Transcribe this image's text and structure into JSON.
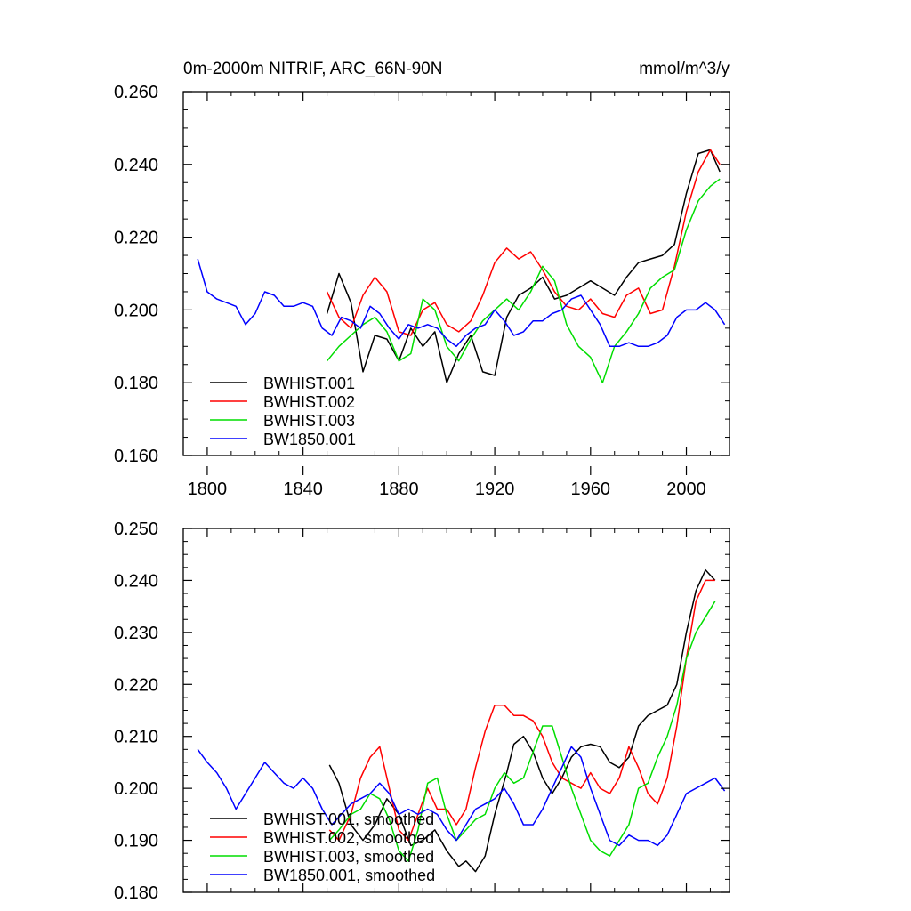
{
  "chart_data": [
    {
      "type": "line",
      "title_left": "0m-2000m NITRIF, ARC_66N-90N",
      "title_right": "mmol/m^3/y",
      "xlabel": "",
      "ylabel": "",
      "xlim": [
        1790,
        2018
      ],
      "ylim": [
        0.16,
        0.26
      ],
      "xticks": [
        1800,
        1840,
        1880,
        1920,
        1960,
        2000
      ],
      "xtick_labels": [
        "1800",
        "1840",
        "1880",
        "1920",
        "1960",
        "2000"
      ],
      "yticks": [
        0.16,
        0.18,
        0.2,
        0.22,
        0.24,
        0.26
      ],
      "ytick_labels": [
        "0.160",
        "0.180",
        "0.200",
        "0.220",
        "0.240",
        "0.260"
      ],
      "legend_position": "bottom-left",
      "series": [
        {
          "name": "BWHIST.001",
          "color": "#000000",
          "x": [
            1850,
            1855,
            1860,
            1865,
            1870,
            1875,
            1880,
            1885,
            1890,
            1895,
            1900,
            1905,
            1910,
            1915,
            1920,
            1925,
            1930,
            1935,
            1940,
            1945,
            1950,
            1955,
            1960,
            1965,
            1970,
            1975,
            1980,
            1985,
            1990,
            1995,
            2000,
            2005,
            2010,
            2014
          ],
          "values": [
            0.199,
            0.21,
            0.202,
            0.183,
            0.193,
            0.192,
            0.186,
            0.195,
            0.19,
            0.194,
            0.18,
            0.188,
            0.193,
            0.183,
            0.182,
            0.198,
            0.204,
            0.206,
            0.209,
            0.203,
            0.204,
            0.206,
            0.208,
            0.206,
            0.204,
            0.209,
            0.213,
            0.214,
            0.215,
            0.218,
            0.232,
            0.243,
            0.244,
            0.238
          ]
        },
        {
          "name": "BWHIST.002",
          "color": "#ff0000",
          "x": [
            1850,
            1855,
            1860,
            1865,
            1870,
            1875,
            1880,
            1885,
            1890,
            1895,
            1900,
            1905,
            1910,
            1915,
            1920,
            1925,
            1930,
            1935,
            1940,
            1945,
            1950,
            1955,
            1960,
            1965,
            1970,
            1975,
            1980,
            1985,
            1990,
            1995,
            2000,
            2005,
            2010,
            2014
          ],
          "values": [
            0.205,
            0.198,
            0.195,
            0.204,
            0.209,
            0.205,
            0.194,
            0.193,
            0.2,
            0.202,
            0.196,
            0.194,
            0.197,
            0.204,
            0.213,
            0.217,
            0.214,
            0.216,
            0.211,
            0.205,
            0.201,
            0.2,
            0.203,
            0.199,
            0.198,
            0.204,
            0.206,
            0.199,
            0.2,
            0.212,
            0.227,
            0.238,
            0.244,
            0.24
          ]
        },
        {
          "name": "BWHIST.003",
          "color": "#00dd00",
          "x": [
            1850,
            1855,
            1860,
            1865,
            1870,
            1875,
            1880,
            1885,
            1890,
            1895,
            1900,
            1905,
            1910,
            1915,
            1920,
            1925,
            1930,
            1935,
            1940,
            1945,
            1950,
            1955,
            1960,
            1965,
            1970,
            1975,
            1980,
            1985,
            1990,
            1995,
            2000,
            2005,
            2010,
            2014
          ],
          "values": [
            0.186,
            0.19,
            0.193,
            0.196,
            0.198,
            0.194,
            0.186,
            0.188,
            0.203,
            0.2,
            0.19,
            0.186,
            0.192,
            0.197,
            0.2,
            0.203,
            0.2,
            0.205,
            0.212,
            0.208,
            0.196,
            0.19,
            0.187,
            0.18,
            0.19,
            0.194,
            0.199,
            0.206,
            0.209,
            0.211,
            0.222,
            0.23,
            0.234,
            0.236
          ]
        },
        {
          "name": "BW1850.001",
          "color": "#0000ff",
          "x": [
            1796,
            1800,
            1804,
            1808,
            1812,
            1816,
            1820,
            1824,
            1828,
            1832,
            1836,
            1840,
            1844,
            1848,
            1852,
            1856,
            1860,
            1864,
            1868,
            1872,
            1876,
            1880,
            1884,
            1888,
            1892,
            1896,
            1900,
            1904,
            1908,
            1912,
            1916,
            1920,
            1924,
            1928,
            1932,
            1936,
            1940,
            1944,
            1948,
            1952,
            1956,
            1960,
            1964,
            1968,
            1972,
            1976,
            1980,
            1984,
            1988,
            1992,
            1996,
            2000,
            2004,
            2008,
            2012,
            2016
          ],
          "values": [
            0.214,
            0.205,
            0.203,
            0.202,
            0.201,
            0.196,
            0.199,
            0.205,
            0.204,
            0.201,
            0.201,
            0.202,
            0.201,
            0.195,
            0.193,
            0.198,
            0.197,
            0.195,
            0.201,
            0.199,
            0.195,
            0.192,
            0.196,
            0.195,
            0.196,
            0.195,
            0.192,
            0.19,
            0.193,
            0.195,
            0.196,
            0.2,
            0.197,
            0.193,
            0.194,
            0.197,
            0.197,
            0.199,
            0.2,
            0.203,
            0.204,
            0.2,
            0.196,
            0.19,
            0.19,
            0.191,
            0.19,
            0.19,
            0.191,
            0.193,
            0.198,
            0.2,
            0.2,
            0.202,
            0.2,
            0.196
          ]
        }
      ]
    },
    {
      "type": "line",
      "title_left": "",
      "title_right": "",
      "xlabel": "",
      "ylabel": "",
      "xlim": [
        1790,
        2018
      ],
      "ylim": [
        0.18,
        0.25
      ],
      "yticks": [
        0.18,
        0.19,
        0.2,
        0.21,
        0.22,
        0.23,
        0.24,
        0.25
      ],
      "ytick_labels": [
        "0.180",
        "0.190",
        "0.200",
        "0.210",
        "0.220",
        "0.230",
        "0.240",
        "0.250"
      ],
      "legend_position": "bottom-left",
      "series": [
        {
          "name": "BWHIST.001, smoothed",
          "color": "#000000",
          "x": [
            1851,
            1855,
            1860,
            1865,
            1870,
            1875,
            1880,
            1885,
            1890,
            1895,
            1900,
            1905,
            1908,
            1912,
            1916,
            1920,
            1925,
            1928,
            1932,
            1936,
            1940,
            1944,
            1948,
            1952,
            1956,
            1960,
            1964,
            1968,
            1972,
            1976,
            1980,
            1984,
            1988,
            1992,
            1996,
            2000,
            2004,
            2008,
            2012
          ],
          "values": [
            0.2045,
            0.201,
            0.193,
            0.19,
            0.193,
            0.198,
            0.195,
            0.189,
            0.19,
            0.192,
            0.188,
            0.185,
            0.186,
            0.184,
            0.187,
            0.195,
            0.203,
            0.2085,
            0.21,
            0.207,
            0.202,
            0.199,
            0.202,
            0.206,
            0.208,
            0.2085,
            0.208,
            0.205,
            0.204,
            0.206,
            0.212,
            0.214,
            0.215,
            0.216,
            0.22,
            0.23,
            0.238,
            0.242,
            0.24
          ]
        },
        {
          "name": "BWHIST.002, smoothed",
          "color": "#ff0000",
          "x": [
            1851,
            1855,
            1860,
            1864,
            1868,
            1872,
            1876,
            1880,
            1884,
            1888,
            1892,
            1896,
            1900,
            1904,
            1908,
            1912,
            1916,
            1920,
            1924,
            1928,
            1932,
            1936,
            1940,
            1944,
            1948,
            1952,
            1956,
            1960,
            1964,
            1968,
            1972,
            1976,
            1980,
            1984,
            1988,
            1992,
            1996,
            2000,
            2004,
            2008,
            2012
          ],
          "values": [
            0.192,
            0.19,
            0.195,
            0.202,
            0.206,
            0.208,
            0.2,
            0.192,
            0.19,
            0.195,
            0.2,
            0.196,
            0.196,
            0.193,
            0.196,
            0.204,
            0.211,
            0.216,
            0.216,
            0.214,
            0.214,
            0.213,
            0.21,
            0.205,
            0.202,
            0.201,
            0.2,
            0.203,
            0.2,
            0.199,
            0.202,
            0.208,
            0.204,
            0.199,
            0.197,
            0.202,
            0.212,
            0.225,
            0.236,
            0.24,
            0.24
          ]
        },
        {
          "name": "BWHIST.003, smoothed",
          "color": "#00dd00",
          "x": [
            1851,
            1855,
            1860,
            1864,
            1868,
            1872,
            1876,
            1880,
            1884,
            1888,
            1892,
            1896,
            1900,
            1904,
            1908,
            1912,
            1916,
            1920,
            1924,
            1928,
            1932,
            1936,
            1940,
            1944,
            1948,
            1952,
            1956,
            1960,
            1964,
            1968,
            1972,
            1976,
            1980,
            1984,
            1988,
            1992,
            1996,
            2000,
            2004,
            2008,
            2012
          ],
          "values": [
            0.19,
            0.192,
            0.195,
            0.196,
            0.199,
            0.198,
            0.194,
            0.188,
            0.186,
            0.192,
            0.201,
            0.202,
            0.195,
            0.19,
            0.192,
            0.194,
            0.195,
            0.2,
            0.203,
            0.201,
            0.202,
            0.207,
            0.212,
            0.212,
            0.206,
            0.2,
            0.195,
            0.19,
            0.188,
            0.187,
            0.19,
            0.193,
            0.2,
            0.201,
            0.206,
            0.21,
            0.216,
            0.225,
            0.23,
            0.233,
            0.236
          ]
        },
        {
          "name": "BW1850.001, smoothed",
          "color": "#0000ff",
          "x": [
            1796,
            1800,
            1804,
            1808,
            1812,
            1816,
            1820,
            1824,
            1828,
            1832,
            1836,
            1840,
            1844,
            1848,
            1852,
            1856,
            1860,
            1864,
            1868,
            1872,
            1876,
            1880,
            1884,
            1888,
            1892,
            1896,
            1900,
            1904,
            1908,
            1912,
            1916,
            1920,
            1924,
            1928,
            1932,
            1936,
            1940,
            1944,
            1948,
            1952,
            1956,
            1960,
            1964,
            1968,
            1972,
            1976,
            1980,
            1984,
            1988,
            1992,
            1996,
            2000,
            2004,
            2008,
            2012,
            2016
          ],
          "values": [
            0.2075,
            0.205,
            0.203,
            0.2,
            0.196,
            0.199,
            0.202,
            0.205,
            0.203,
            0.201,
            0.2,
            0.202,
            0.2,
            0.196,
            0.193,
            0.195,
            0.197,
            0.198,
            0.199,
            0.201,
            0.199,
            0.195,
            0.196,
            0.195,
            0.196,
            0.195,
            0.192,
            0.19,
            0.193,
            0.196,
            0.197,
            0.198,
            0.2,
            0.197,
            0.193,
            0.193,
            0.196,
            0.2,
            0.204,
            0.208,
            0.206,
            0.2,
            0.195,
            0.19,
            0.189,
            0.191,
            0.19,
            0.19,
            0.189,
            0.191,
            0.195,
            0.199,
            0.2,
            0.201,
            0.202,
            0.1995
          ]
        }
      ]
    }
  ]
}
